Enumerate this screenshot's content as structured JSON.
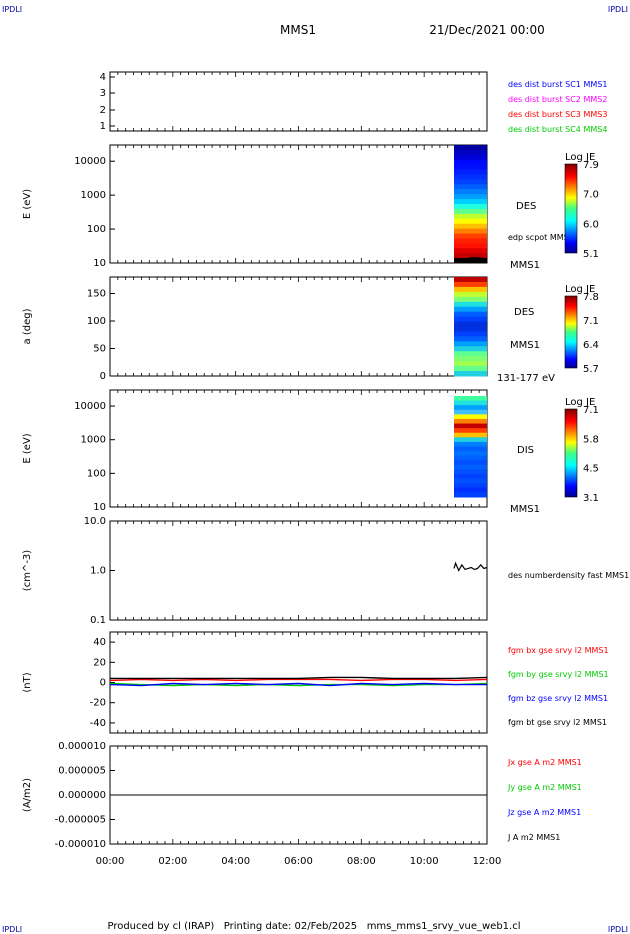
{
  "corner_labels": {
    "tl": "IPDLI",
    "tr": "IPDLI",
    "bl": "IPDLI",
    "br": "IPDLI"
  },
  "header": {
    "spacecraft": "MMS1",
    "date": "21/Dec/2021 00:00"
  },
  "footer": {
    "text": "Produced by cl (IRAP)   Printing date: 02/Feb/2025   mms_mms1_srvy_vue_web1.cl"
  },
  "x_ticks": [
    "00:00",
    "02:00",
    "04:00",
    "06:00",
    "08:00",
    "10:00",
    "12:00"
  ],
  "colors": {
    "blue": "#0000ff",
    "magenta": "#ff00ff",
    "red": "#ff0000",
    "green": "#00cc00",
    "black": "#000000"
  },
  "chart_data": [
    {
      "type": "table",
      "panel": "burst-availability",
      "y_ticks": [
        "4",
        "3",
        "2",
        "1"
      ],
      "legend": [
        {
          "label": "des dist burst SC1 MMS1",
          "color": "#0000ff"
        },
        {
          "label": "des dist burst SC2 MMS2",
          "color": "#ff00ff"
        },
        {
          "label": "des dist burst SC3 MMS3",
          "color": "#ff0000"
        },
        {
          "label": "des dist burst SC4 MMS4",
          "color": "#00cc00"
        }
      ]
    },
    {
      "type": "heatmap",
      "panel": "des-energy-spectrogram",
      "ylabel": "E (eV)",
      "y_ticks": [
        "10000",
        "1000",
        "100",
        "10"
      ],
      "log_scale": true,
      "ylim": [
        10,
        30000
      ],
      "data_interval_hours": [
        10.95,
        12.0
      ],
      "instrument": "DES",
      "station": "MMS1",
      "overlay_label": "edp scpot MMS1",
      "colorbar": {
        "title": "Log JE",
        "ticks": [
          "7.9",
          "7.0",
          "6.0",
          "5.1"
        ]
      }
    },
    {
      "type": "heatmap",
      "panel": "des-pitch-angle",
      "ylabel": "a (deg)",
      "y_ticks": [
        "150",
        "100",
        "50",
        "0"
      ],
      "ylim": [
        0,
        180
      ],
      "data_interval_hours": [
        10.95,
        12.0
      ],
      "instrument": "DES",
      "station": "MMS1",
      "energy_range": "131-177 eV",
      "colorbar": {
        "title": "Log JE",
        "ticks": [
          "7.8",
          "7.1",
          "6.4",
          "5.7"
        ]
      }
    },
    {
      "type": "heatmap",
      "panel": "dis-energy-spectrogram",
      "ylabel": "E (eV)",
      "y_ticks": [
        "10000",
        "1000",
        "100",
        "10"
      ],
      "log_scale": true,
      "ylim": [
        10,
        30000
      ],
      "data_interval_hours": [
        10.95,
        12.0
      ],
      "instrument": "DIS",
      "station": "MMS1",
      "colorbar": {
        "title": "Log JE",
        "ticks": [
          "7.1",
          "5.8",
          "4.5",
          "3.1"
        ]
      }
    },
    {
      "type": "line",
      "panel": "electron-density",
      "ylabel": "(cm^-3)",
      "y_ticks": [
        "10.0",
        "1.0",
        "0.1"
      ],
      "log_scale": true,
      "ylim": [
        0.1,
        10
      ],
      "series": [
        {
          "name": "des numberdensity fast MMS1",
          "color": "#000000",
          "x": [
            10.95,
            11.0,
            11.1,
            11.2,
            11.3,
            11.4,
            11.5,
            11.6,
            11.7,
            11.8,
            11.9,
            12.0
          ],
          "y": [
            1.1,
            1.4,
            1.0,
            1.3,
            1.05,
            1.1,
            1.15,
            1.05,
            1.1,
            1.3,
            1.1,
            1.15
          ]
        }
      ]
    },
    {
      "type": "line",
      "panel": "magnetic-field",
      "ylabel": "(nT)",
      "y_ticks": [
        "40",
        "20",
        "0",
        "-20",
        "-40"
      ],
      "ylim": [
        -50,
        50
      ],
      "x": [
        0,
        1,
        2,
        3,
        4,
        5,
        6,
        7,
        8,
        9,
        10,
        11,
        12
      ],
      "series": [
        {
          "name": "fgm bx gse srvy l2 MMS1",
          "color": "#ff0000",
          "values": [
            2,
            3,
            2,
            3,
            2,
            3,
            3,
            3,
            2,
            3,
            3,
            2,
            3
          ]
        },
        {
          "name": "fgm by gse srvy l2 MMS1",
          "color": "#00cc00",
          "values": [
            -1,
            -2,
            -3,
            -2,
            -3,
            -2,
            -3,
            -2,
            -2,
            -3,
            -2,
            -2,
            -1
          ]
        },
        {
          "name": "fgm bz gse srvy l2 MMS1",
          "color": "#0000ff",
          "values": [
            -2,
            -3,
            -1,
            -2,
            -1,
            -2,
            -1,
            -3,
            -1,
            -2,
            -1,
            -2,
            -2
          ]
        },
        {
          "name": "fgm bt gse srvy l2 MMS1",
          "color": "#000000",
          "values": [
            4,
            4,
            4,
            4,
            4,
            4,
            4,
            5,
            5,
            4,
            4,
            4,
            5
          ]
        }
      ]
    },
    {
      "type": "line",
      "panel": "current-density",
      "ylabel": "(A/m2)",
      "y_ticks": [
        "0.000010",
        "0.000005",
        "0.000000",
        "-0.000005",
        "-0.000010"
      ],
      "ylim": [
        -1e-05,
        1e-05
      ],
      "x": [
        0,
        2,
        4,
        6,
        8,
        10,
        12
      ],
      "series": [
        {
          "name": "Jx gse A m2 MMS1",
          "color": "#ff0000",
          "values": [
            0,
            0,
            0,
            0,
            0,
            0,
            0
          ]
        },
        {
          "name": "Jy gse A m2 MMS1",
          "color": "#00cc00",
          "values": [
            0,
            0,
            0,
            0,
            0,
            0,
            0
          ]
        },
        {
          "name": "Jz gse A m2 MMS1",
          "color": "#0000ff",
          "values": [
            0,
            0,
            0,
            0,
            0,
            0,
            0
          ]
        },
        {
          "name": "J A m2 MMS1",
          "color": "#000000",
          "values": [
            0,
            0,
            0,
            0,
            0,
            0,
            0
          ]
        }
      ]
    }
  ]
}
